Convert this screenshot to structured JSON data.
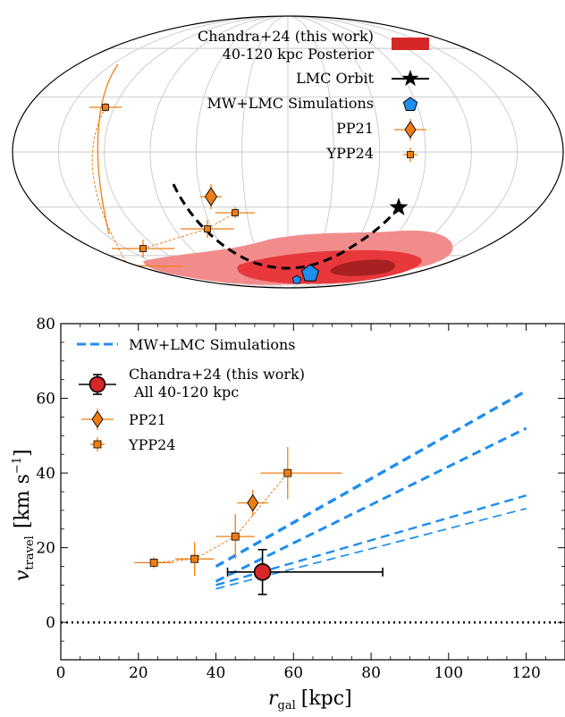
{
  "colors": {
    "chandra": "#d62728",
    "chandra_light": "#f28c8c",
    "chandra_mid": "#e8383d",
    "chandra_dark": "#a82020",
    "sims": "#1f8ef1",
    "pp21": "#f07d14",
    "ypp24": "#f07d14",
    "lmc": "#000000",
    "grid": "#c8c8c8"
  },
  "chart_data": [
    {
      "type": "sky-map",
      "projection": "Mollweide",
      "grid": true,
      "legend": {
        "placement": "top-right",
        "entries": [
          {
            "key": "chandra",
            "label_line1": "Chandra+24 (this work)",
            "label_line2": "40-120 kpc Posterior",
            "marker": "filled-rect"
          },
          {
            "key": "lmc",
            "label_line1": "LMC Orbit",
            "marker": "star-with-line"
          },
          {
            "key": "sims",
            "label_line1": "MW+LMC Simulations",
            "marker": "pentagon"
          },
          {
            "key": "pp21",
            "label_line1": "PP21",
            "marker": "diamond-errorbar"
          },
          {
            "key": "ypp24",
            "label_line1": "YPP24",
            "marker": "square-errorbar"
          }
        ]
      }
    },
    {
      "type": "line+scatter",
      "xlabel_main": "r",
      "xlabel_sub": "gal",
      "xlabel_unit": "[kpc]",
      "ylabel_main": "v",
      "ylabel_sub": "travel",
      "ylabel_unit_pre": "[km s",
      "ylabel_unit_exp": "−1",
      "ylabel_unit_post": "]",
      "xlim": [
        0,
        130
      ],
      "ylim": [
        -10,
        80
      ],
      "xticks": [
        0,
        20,
        40,
        60,
        80,
        100,
        120
      ],
      "yticks": [
        0,
        20,
        40,
        60,
        80
      ],
      "reference_line": {
        "y": 0,
        "style": "dotted"
      },
      "legend": {
        "placement": "upper-left",
        "entries": [
          {
            "key": "sims",
            "label_line1": "MW+LMC Simulations",
            "marker": "dashed-line"
          },
          {
            "key": "chandra",
            "label_line1": "Chandra+24 (this work)",
            "label_line2": "All 40-120 kpc",
            "marker": "circle-errorbar"
          },
          {
            "key": "pp21",
            "label_line1": "PP21",
            "marker": "diamond-errorbar"
          },
          {
            "key": "ypp24",
            "label_line1": "YPP24",
            "marker": "square-errorbar"
          }
        ]
      },
      "series": [
        {
          "key": "sims",
          "lines": [
            {
              "x": [
                40,
                120
              ],
              "y": [
                15,
                62
              ],
              "width": 3.4
            },
            {
              "x": [
                40,
                120
              ],
              "y": [
                11,
                52
              ],
              "width": 3.0
            },
            {
              "x": [
                40,
                120
              ],
              "y": [
                10,
                34
              ],
              "width": 2.4
            },
            {
              "x": [
                40,
                120
              ],
              "y": [
                9,
                30.5
              ],
              "width": 1.7
            }
          ]
        },
        {
          "key": "chandra",
          "points": [
            {
              "x": 52,
              "y": 13.5,
              "xerr": [
                9,
                31
              ],
              "yerr": [
                6,
                6
              ]
            }
          ]
        },
        {
          "key": "pp21",
          "points": [
            {
              "x": 49.5,
              "y": 32,
              "xerr": [
                4,
                4
              ],
              "yerr": [
                3.5,
                3.5
              ]
            }
          ]
        },
        {
          "key": "ypp24",
          "connected": true,
          "points": [
            {
              "x": 24,
              "y": 16,
              "xerr": [
                5,
                5
              ],
              "yerr": [
                1.5,
                1.5
              ]
            },
            {
              "x": 34.5,
              "y": 17,
              "xerr": [
                5,
                5
              ],
              "yerr": [
                4.5,
                4.5
              ]
            },
            {
              "x": 45,
              "y": 23,
              "xerr": [
                5,
                5
              ],
              "yerr": [
                6,
                6
              ]
            },
            {
              "x": 58.5,
              "y": 40,
              "xerr": [
                7,
                14
              ],
              "yerr": [
                7,
                7
              ]
            }
          ]
        }
      ]
    }
  ]
}
